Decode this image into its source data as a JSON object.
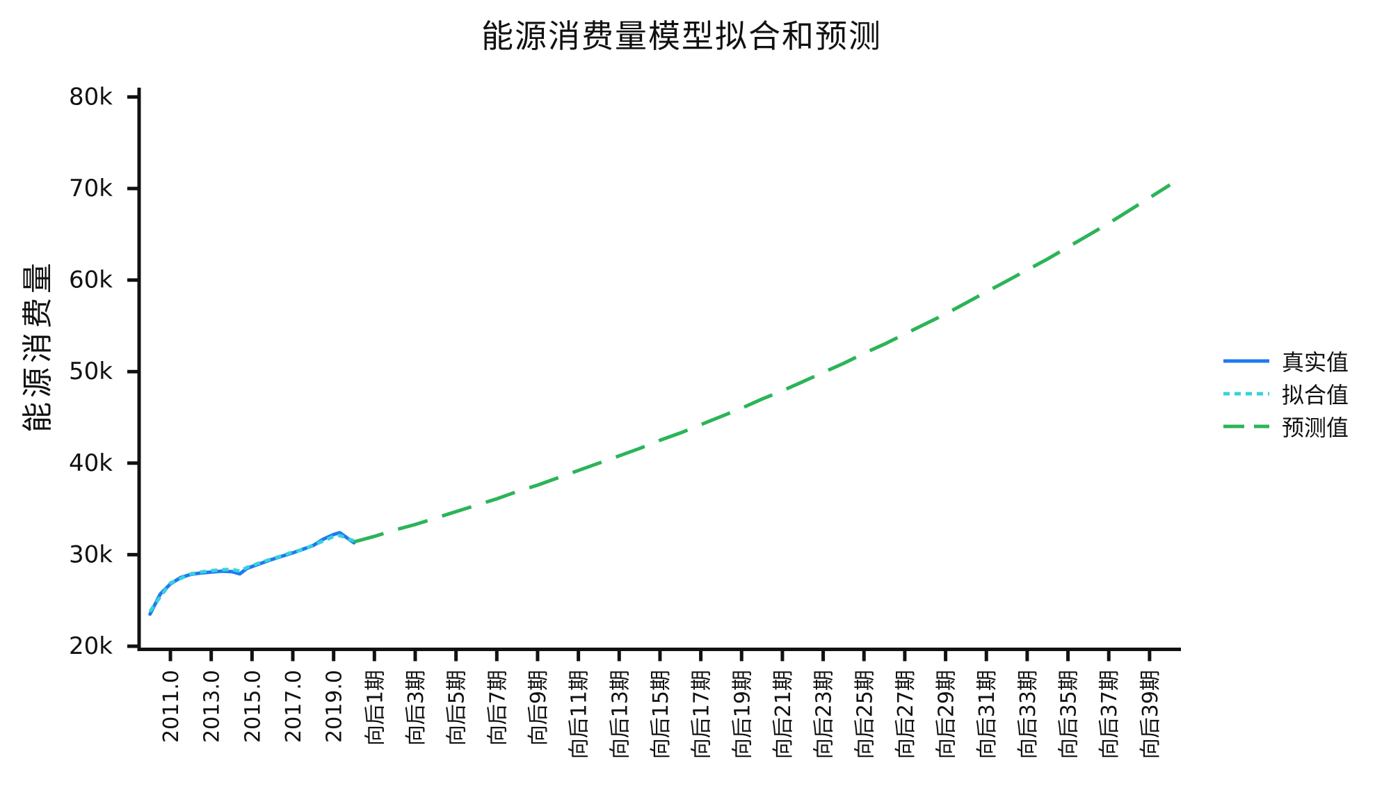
{
  "page_title": "能源消费量模型拟合和预测",
  "colors": {
    "actual": "#2079f0",
    "fitted": "#35d2dd",
    "forecast": "#2cb458",
    "axis": "#111111",
    "background": "#ffffff"
  },
  "chart_data": {
    "type": "line",
    "title": "能源消费量模型拟合和预测",
    "xlabel": "",
    "ylabel": "能源消费量",
    "ylim": [
      20,
      80
    ],
    "grid": false,
    "y_ticks": {
      "values": [
        20,
        30,
        40,
        50,
        60,
        70,
        80
      ],
      "labels": [
        "20k",
        "30k",
        "40k",
        "50k",
        "60k",
        "70k",
        "80k"
      ]
    },
    "x_unit_note": "t axis units: 2010=0, +1 per year; 向后n期 = 10+n",
    "x_ticks": [
      {
        "t": 1,
        "label": "2011.0"
      },
      {
        "t": 3,
        "label": "2013.0"
      },
      {
        "t": 5,
        "label": "2015.0"
      },
      {
        "t": 7,
        "label": "2017.0"
      },
      {
        "t": 9,
        "label": "2019.0"
      },
      {
        "t": 11,
        "label": "向后1期"
      },
      {
        "t": 13,
        "label": "向后3期"
      },
      {
        "t": 15,
        "label": "向后5期"
      },
      {
        "t": 17,
        "label": "向后7期"
      },
      {
        "t": 19,
        "label": "向后9期"
      },
      {
        "t": 21,
        "label": "向后11期"
      },
      {
        "t": 23,
        "label": "向后13期"
      },
      {
        "t": 25,
        "label": "向后15期"
      },
      {
        "t": 27,
        "label": "向后17期"
      },
      {
        "t": 29,
        "label": "向后19期"
      },
      {
        "t": 31,
        "label": "向后21期"
      },
      {
        "t": 33,
        "label": "向后23期"
      },
      {
        "t": 35,
        "label": "向后25期"
      },
      {
        "t": 37,
        "label": "向后27期"
      },
      {
        "t": 39,
        "label": "向后29期"
      },
      {
        "t": 41,
        "label": "向后31期"
      },
      {
        "t": 43,
        "label": "向后33期"
      },
      {
        "t": 45,
        "label": "向后35期"
      },
      {
        "t": 47,
        "label": "向后37期"
      },
      {
        "t": 49,
        "label": "向后39期"
      }
    ],
    "series": [
      {
        "id": "actual",
        "name": "真实值",
        "color": "#2079f0",
        "style": "solid",
        "x": [
          0,
          0.5,
          1,
          1.5,
          2,
          2.5,
          3,
          3.5,
          4,
          4.4,
          4.75,
          5,
          5.5,
          6,
          6.5,
          7,
          7.5,
          8,
          8.5,
          9,
          9.3,
          10
        ],
        "y_k": [
          23.5,
          25.7,
          26.8,
          27.5,
          27.85,
          28.0,
          28.1,
          28.2,
          28.15,
          27.9,
          28.5,
          28.7,
          29.1,
          29.5,
          29.85,
          30.2,
          30.6,
          31.0,
          31.7,
          32.2,
          32.4,
          31.3
        ]
      },
      {
        "id": "fitted",
        "name": "拟合值",
        "color": "#35d2dd",
        "style": "dash-short",
        "x": [
          0,
          0.5,
          1,
          1.5,
          2,
          2.5,
          3,
          3.5,
          4,
          4.4,
          4.75,
          5,
          5.5,
          6,
          6.5,
          7,
          7.5,
          8,
          8.5,
          9,
          9.3,
          10
        ],
        "y_k": [
          23.8,
          25.4,
          26.9,
          27.4,
          27.9,
          28.1,
          28.25,
          28.35,
          28.4,
          28.2,
          28.6,
          28.8,
          29.2,
          29.55,
          29.9,
          30.3,
          30.55,
          31.05,
          31.5,
          32.0,
          32.1,
          31.5
        ]
      },
      {
        "id": "forecast",
        "name": "预测值",
        "color": "#2cb458",
        "style": "dash-long",
        "x": [
          10,
          11,
          12,
          13,
          14,
          15,
          16,
          17,
          18,
          19,
          20,
          21,
          22,
          23,
          24,
          25,
          26,
          27,
          28,
          29,
          30,
          31,
          32,
          33,
          34,
          35,
          36,
          37,
          38,
          39,
          40,
          41,
          42,
          43,
          44,
          45,
          46,
          47,
          48,
          49,
          50
        ],
        "y_k": [
          31.4,
          32.0,
          32.7,
          33.3,
          34.0,
          34.7,
          35.4,
          36.1,
          36.9,
          37.6,
          38.4,
          39.2,
          40.0,
          40.8,
          41.6,
          42.5,
          43.3,
          44.2,
          45.1,
          46.0,
          47.0,
          47.9,
          48.9,
          49.9,
          50.9,
          52.0,
          53.0,
          54.1,
          55.2,
          56.3,
          57.5,
          58.7,
          59.9,
          61.1,
          62.3,
          63.6,
          64.9,
          66.2,
          67.6,
          69.0,
          70.4
        ]
      }
    ],
    "legend": {
      "position": "right-center",
      "entries": [
        {
          "series": "actual",
          "name": "真实值"
        },
        {
          "series": "fitted",
          "name": "拟合值"
        },
        {
          "series": "forecast",
          "name": "预测值"
        }
      ]
    }
  }
}
